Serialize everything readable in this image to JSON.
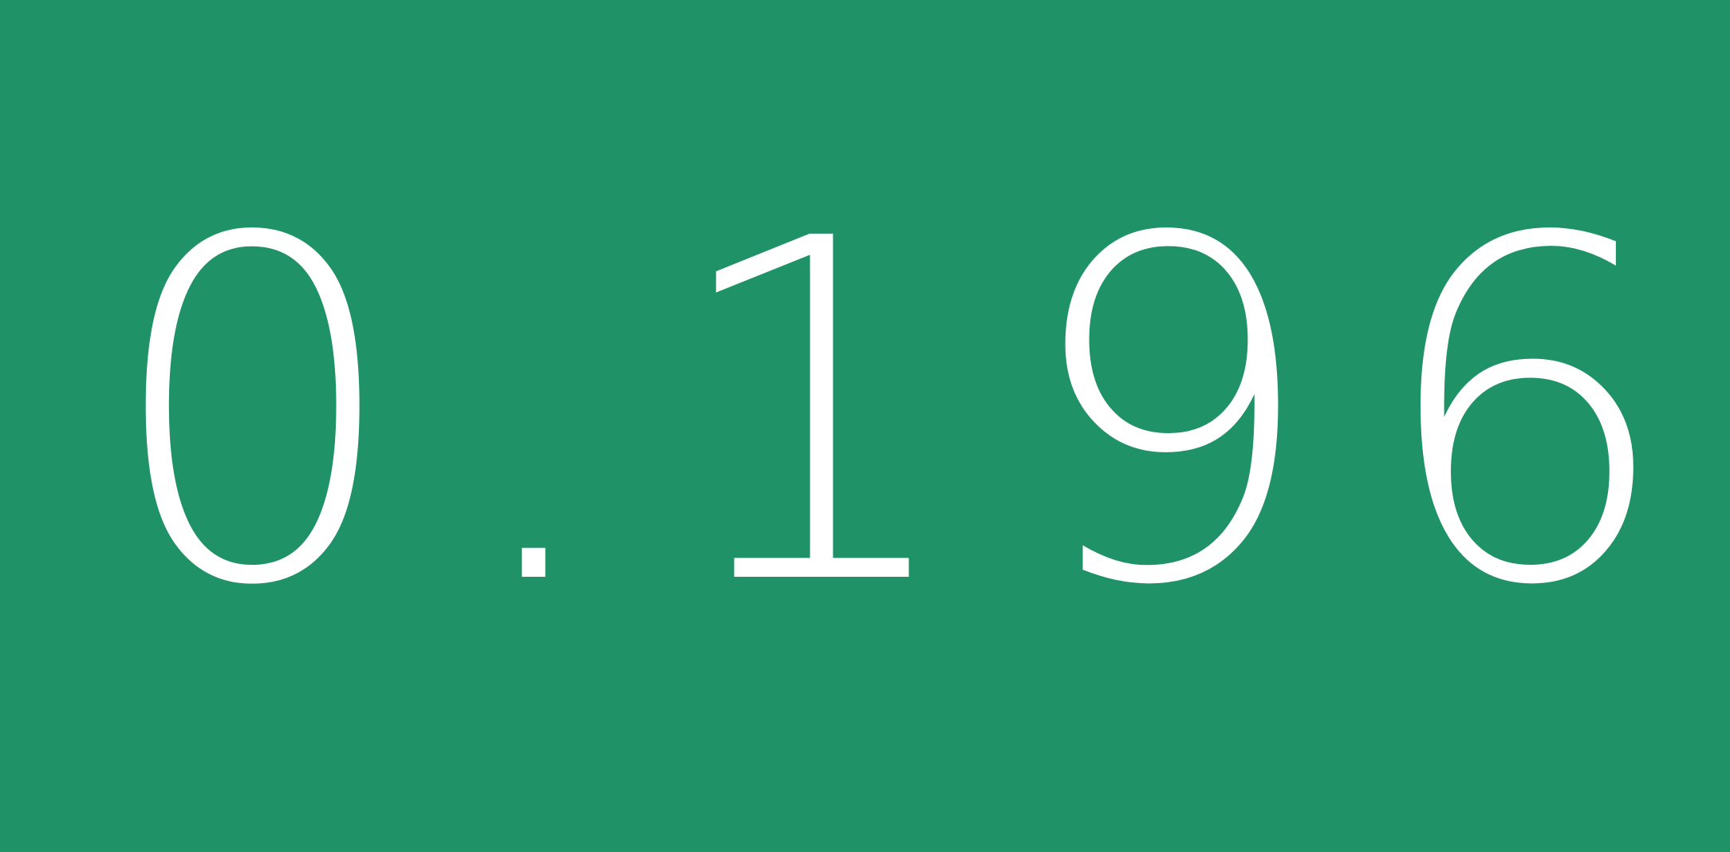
{
  "tile": {
    "value": "0.196",
    "colors": {
      "background": "#209268",
      "text": "#FFFFFF"
    }
  }
}
